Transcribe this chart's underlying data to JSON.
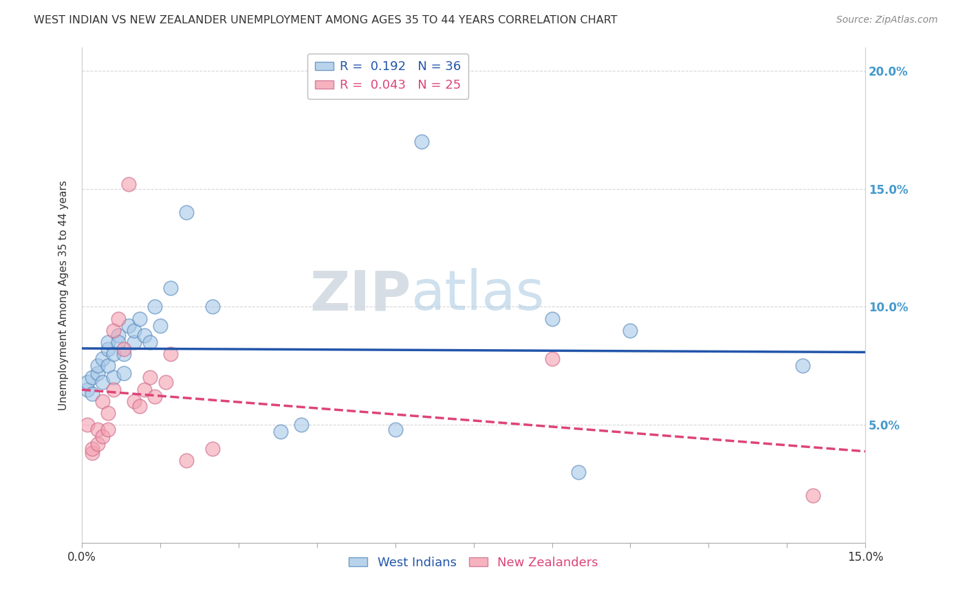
{
  "title": "WEST INDIAN VS NEW ZEALANDER UNEMPLOYMENT AMONG AGES 35 TO 44 YEARS CORRELATION CHART",
  "source": "Source: ZipAtlas.com",
  "ylabel": "Unemployment Among Ages 35 to 44 years",
  "xlim": [
    0,
    0.15
  ],
  "ylim": [
    0,
    0.21
  ],
  "xticks": [
    0.0,
    0.015,
    0.03,
    0.045,
    0.06,
    0.075,
    0.09,
    0.105,
    0.12,
    0.135,
    0.15
  ],
  "yticks": [
    0.0,
    0.05,
    0.1,
    0.15,
    0.2
  ],
  "watermark_zip": "ZIP",
  "watermark_atlas": "atlas",
  "blue_color": "#a8c8e8",
  "pink_color": "#f4a0b0",
  "blue_edge_color": "#5588bb",
  "pink_edge_color": "#cc6688",
  "blue_line_color": "#2255aa",
  "pink_line_color": "#dd4477",
  "right_axis_color": "#4499cc",
  "background_color": "#ffffff",
  "grid_color": "#cccccc",
  "west_indian_x": [
    0.001,
    0.001,
    0.002,
    0.002,
    0.003,
    0.003,
    0.004,
    0.004,
    0.005,
    0.005,
    0.005,
    0.006,
    0.006,
    0.007,
    0.007,
    0.008,
    0.008,
    0.009,
    0.01,
    0.01,
    0.011,
    0.012,
    0.013,
    0.014,
    0.015,
    0.017,
    0.02,
    0.025,
    0.038,
    0.042,
    0.06,
    0.065,
    0.09,
    0.095,
    0.105,
    0.138
  ],
  "west_indian_y": [
    0.065,
    0.068,
    0.063,
    0.07,
    0.072,
    0.075,
    0.068,
    0.078,
    0.082,
    0.075,
    0.085,
    0.08,
    0.07,
    0.088,
    0.085,
    0.08,
    0.072,
    0.092,
    0.085,
    0.09,
    0.095,
    0.088,
    0.085,
    0.1,
    0.092,
    0.108,
    0.14,
    0.1,
    0.047,
    0.05,
    0.048,
    0.17,
    0.095,
    0.03,
    0.09,
    0.075
  ],
  "new_zealander_x": [
    0.001,
    0.002,
    0.002,
    0.003,
    0.003,
    0.004,
    0.004,
    0.005,
    0.005,
    0.006,
    0.006,
    0.007,
    0.008,
    0.009,
    0.01,
    0.011,
    0.012,
    0.013,
    0.014,
    0.016,
    0.017,
    0.02,
    0.025,
    0.09,
    0.14
  ],
  "new_zealander_y": [
    0.05,
    0.038,
    0.04,
    0.042,
    0.048,
    0.045,
    0.06,
    0.055,
    0.048,
    0.065,
    0.09,
    0.095,
    0.082,
    0.152,
    0.06,
    0.058,
    0.065,
    0.07,
    0.062,
    0.068,
    0.08,
    0.035,
    0.04,
    0.078,
    0.02
  ]
}
